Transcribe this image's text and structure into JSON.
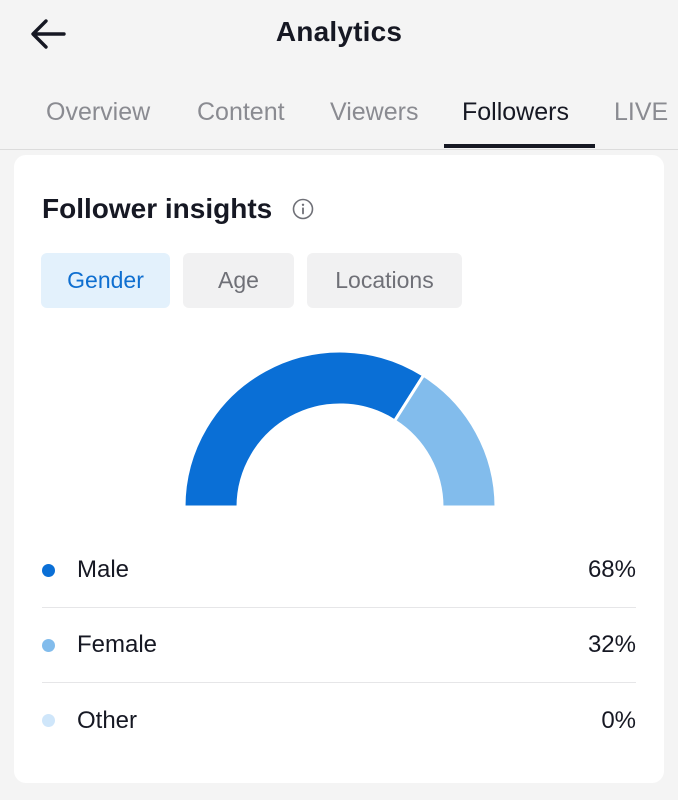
{
  "header": {
    "title": "Analytics",
    "back_icon": "arrow-left-icon"
  },
  "tabs": [
    {
      "label": "Overview",
      "active": false
    },
    {
      "label": "Content",
      "active": false
    },
    {
      "label": "Viewers",
      "active": false
    },
    {
      "label": "Followers",
      "active": true
    },
    {
      "label": "LIVE",
      "active": false
    }
  ],
  "insights": {
    "title": "Follower insights",
    "info_icon": "info-icon",
    "chips": [
      {
        "label": "Gender",
        "active": true
      },
      {
        "label": "Age",
        "active": false
      },
      {
        "label": "Locations",
        "active": false
      }
    ]
  },
  "chart_data": {
    "type": "pie",
    "categories": [
      "Male",
      "Female",
      "Other"
    ],
    "values": [
      68,
      32,
      0
    ],
    "colors": [
      "#0a6fd6",
      "#82bcec",
      "#cfe6fa"
    ]
  },
  "legend": [
    {
      "label": "Male",
      "value": "68%",
      "color": "#0a6fd6"
    },
    {
      "label": "Female",
      "value": "32%",
      "color": "#82bcec"
    },
    {
      "label": "Other",
      "value": "0%",
      "color": "#cfe6fa"
    }
  ]
}
